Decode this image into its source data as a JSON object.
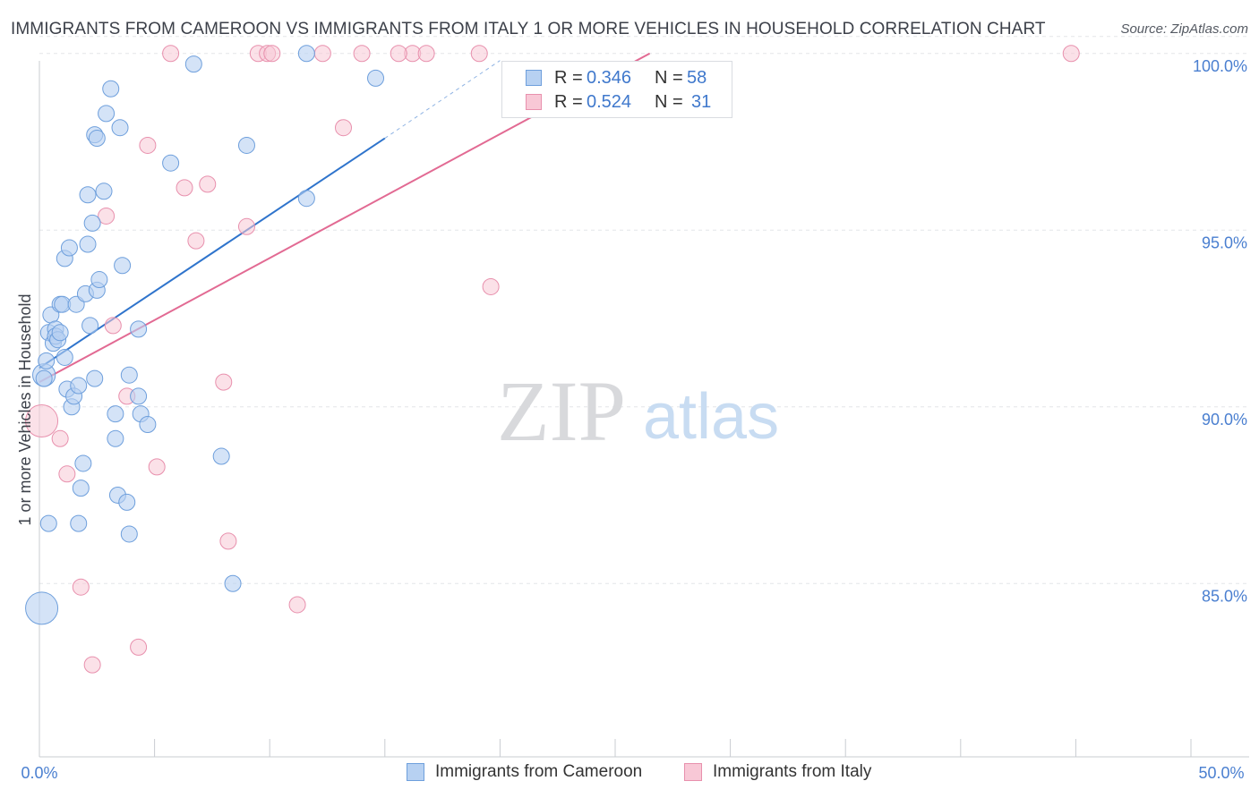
{
  "header": {
    "title": "IMMIGRANTS FROM CAMEROON VS IMMIGRANTS FROM ITALY 1 OR MORE VEHICLES IN HOUSEHOLD CORRELATION CHART",
    "source": "Source: ZipAtlas.com"
  },
  "watermark": {
    "zip": "ZIP",
    "atlas": "atlas"
  },
  "legend": {
    "cameroon": {
      "r_label": "R =",
      "r_value": "0.346",
      "n_label": "N =",
      "n_value": "58"
    },
    "italy": {
      "r_label": "R =",
      "r_value": "0.524",
      "n_label": "N =",
      "n_value": "31"
    }
  },
  "bottom_legend": {
    "cameroon": "Immigrants from Cameroon",
    "italy": "Immigrants from Italy"
  },
  "colors": {
    "cameroon_fill": "#b7d1f2",
    "cameroon_stroke": "#6e9fdc",
    "cameroon_line": "#2f74cc",
    "italy_fill": "#f8c8d6",
    "italy_stroke": "#e890ad",
    "italy_line": "#e26a93",
    "tick_text": "#4a7fd0"
  },
  "chart_data": {
    "type": "scatter",
    "title": "IMMIGRANTS FROM CAMEROON VS IMMIGRANTS FROM ITALY 1 OR MORE VEHICLES IN HOUSEHOLD CORRELATION CHART",
    "xlabel": "",
    "ylabel": "1 or more Vehicles in Household",
    "xlim": [
      0,
      50
    ],
    "ylim": [
      80.5,
      100.5
    ],
    "x_tick_labels": [
      "0.0%",
      "50.0%"
    ],
    "y_ticks": [
      85,
      90,
      95,
      100
    ],
    "y_tick_labels": [
      "85.0%",
      "90.0%",
      "95.0%",
      "100.0%"
    ],
    "grid": true,
    "legend_position": "top-center",
    "series": [
      {
        "name": "Immigrants from Cameroon",
        "R": 0.346,
        "N": 58,
        "trend": {
          "x0": 0.0,
          "y0": 91.1,
          "x1": 15.0,
          "y1": 97.6,
          "dashed_to_x": 20.0,
          "dashed_to_y": 99.8
        },
        "points": [
          [
            0.1,
            84.3,
            2
          ],
          [
            0.2,
            90.9,
            1.4
          ],
          [
            0.2,
            90.8,
            1
          ],
          [
            0.3,
            91.3,
            1
          ],
          [
            0.4,
            92.1,
            1
          ],
          [
            0.5,
            92.6,
            1
          ],
          [
            0.6,
            91.8,
            1
          ],
          [
            0.7,
            92.2,
            1
          ],
          [
            0.7,
            92.0,
            1
          ],
          [
            0.8,
            91.9,
            1
          ],
          [
            0.9,
            92.9,
            1
          ],
          [
            0.9,
            92.1,
            1
          ],
          [
            1.0,
            92.9,
            1
          ],
          [
            1.1,
            91.4,
            1
          ],
          [
            1.1,
            94.2,
            1
          ],
          [
            1.2,
            90.5,
            1
          ],
          [
            1.3,
            94.5,
            1
          ],
          [
            1.4,
            90.0,
            1
          ],
          [
            1.5,
            90.3,
            1
          ],
          [
            1.6,
            92.9,
            1
          ],
          [
            1.7,
            90.6,
            1
          ],
          [
            1.8,
            87.7,
            1
          ],
          [
            1.7,
            86.7,
            1
          ],
          [
            1.9,
            88.4,
            1
          ],
          [
            2.0,
            93.2,
            1
          ],
          [
            2.1,
            96.0,
            1
          ],
          [
            2.1,
            94.6,
            1
          ],
          [
            2.2,
            92.3,
            1
          ],
          [
            2.3,
            95.2,
            1
          ],
          [
            2.4,
            90.8,
            1
          ],
          [
            2.4,
            97.7,
            1
          ],
          [
            2.5,
            93.3,
            1
          ],
          [
            2.5,
            97.6,
            1
          ],
          [
            2.6,
            93.6,
            1
          ],
          [
            2.8,
            96.1,
            1
          ],
          [
            2.9,
            98.3,
            1
          ],
          [
            3.1,
            99.0,
            1
          ],
          [
            3.3,
            89.1,
            1
          ],
          [
            3.3,
            89.8,
            1
          ],
          [
            3.4,
            87.5,
            1
          ],
          [
            3.5,
            97.9,
            1
          ],
          [
            3.6,
            94.0,
            1
          ],
          [
            3.8,
            87.3,
            1
          ],
          [
            3.9,
            86.4,
            1
          ],
          [
            3.9,
            90.9,
            1
          ],
          [
            4.3,
            90.3,
            1
          ],
          [
            4.3,
            92.2,
            1
          ],
          [
            4.4,
            89.8,
            1
          ],
          [
            4.7,
            89.5,
            1
          ],
          [
            5.7,
            96.9,
            1
          ],
          [
            6.7,
            99.7,
            1
          ],
          [
            7.9,
            88.6,
            1
          ],
          [
            8.4,
            85.0,
            1
          ],
          [
            9.0,
            97.4,
            1
          ],
          [
            11.6,
            95.9,
            1
          ],
          [
            11.6,
            100.0,
            1
          ],
          [
            14.6,
            99.3,
            1
          ],
          [
            0.4,
            86.7,
            1
          ]
        ]
      },
      {
        "name": "Immigrants from Italy",
        "R": 0.524,
        "N": 31,
        "trend": {
          "x0": 0.0,
          "y0": 90.7,
          "x1": 26.5,
          "y1": 100.0
        },
        "points": [
          [
            0.1,
            89.6,
            2
          ],
          [
            0.9,
            89.1,
            1
          ],
          [
            1.2,
            88.1,
            1
          ],
          [
            1.8,
            84.9,
            1
          ],
          [
            2.3,
            82.7,
            1
          ],
          [
            2.9,
            95.4,
            1
          ],
          [
            3.2,
            92.3,
            1
          ],
          [
            3.8,
            90.3,
            1
          ],
          [
            4.3,
            83.2,
            1
          ],
          [
            4.7,
            97.4,
            1
          ],
          [
            5.1,
            88.3,
            1
          ],
          [
            5.7,
            100.0,
            1
          ],
          [
            6.3,
            96.2,
            1
          ],
          [
            6.8,
            94.7,
            1
          ],
          [
            7.3,
            96.3,
            1
          ],
          [
            8.0,
            90.7,
            1
          ],
          [
            8.2,
            86.2,
            1
          ],
          [
            9.0,
            95.1,
            1
          ],
          [
            9.5,
            100.0,
            1
          ],
          [
            9.9,
            100.0,
            1
          ],
          [
            10.1,
            100.0,
            1
          ],
          [
            11.2,
            84.4,
            1
          ],
          [
            12.3,
            100.0,
            1
          ],
          [
            13.2,
            97.9,
            1
          ],
          [
            14.0,
            100.0,
            1
          ],
          [
            16.2,
            100.0,
            1
          ],
          [
            16.8,
            100.0,
            1
          ],
          [
            19.1,
            100.0,
            1
          ],
          [
            19.6,
            93.4,
            1
          ],
          [
            44.8,
            100.0,
            1
          ],
          [
            15.6,
            100.0,
            1
          ]
        ]
      }
    ]
  }
}
